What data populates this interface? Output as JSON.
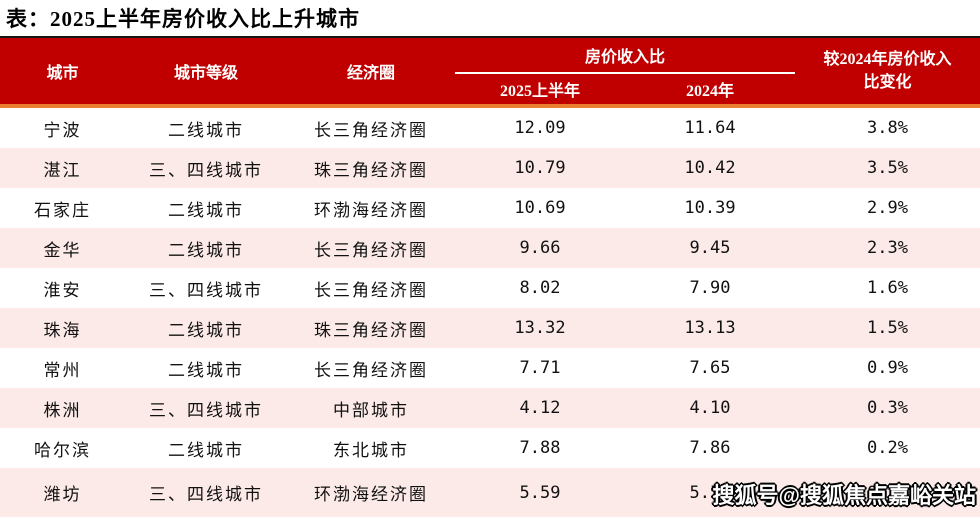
{
  "title": "表：2025上半年房价收入比上升城市",
  "watermark": "搜狐号@搜狐焦点嘉峪关站",
  "colors": {
    "header_bg": "#C00000",
    "header_text": "#FFFFFF",
    "header_top_line": "#151515",
    "header_bottom_line_orange": "#E97F2E",
    "group_underline": "#FFFFFF",
    "row_alt_bg": "#FBEAE8",
    "body_text": "#111111"
  },
  "table": {
    "headers": {
      "city": "城市",
      "tier": "城市等级",
      "circle": "经济圈",
      "ratio_group": "房价收入比",
      "h1_2025": "2025上半年",
      "y2024": "2024年",
      "change_line1": "较2024年房价收入",
      "change_line2": "比变化"
    },
    "rows": [
      {
        "city": "宁波",
        "tier": "二线城市",
        "circle": "长三角经济圈",
        "v2025": "12.09",
        "v2024": "11.64",
        "change": "3.8%"
      },
      {
        "city": "湛江",
        "tier": "三、四线城市",
        "circle": "珠三角经济圈",
        "v2025": "10.79",
        "v2024": "10.42",
        "change": "3.5%"
      },
      {
        "city": "石家庄",
        "tier": "二线城市",
        "circle": "环渤海经济圈",
        "v2025": "10.69",
        "v2024": "10.39",
        "change": "2.9%"
      },
      {
        "city": "金华",
        "tier": "二线城市",
        "circle": "长三角经济圈",
        "v2025": "9.66",
        "v2024": "9.45",
        "change": "2.3%"
      },
      {
        "city": "淮安",
        "tier": "三、四线城市",
        "circle": "长三角经济圈",
        "v2025": "8.02",
        "v2024": "7.90",
        "change": "1.6%"
      },
      {
        "city": "珠海",
        "tier": "二线城市",
        "circle": "珠三角经济圈",
        "v2025": "13.32",
        "v2024": "13.13",
        "change": "1.5%"
      },
      {
        "city": "常州",
        "tier": "二线城市",
        "circle": "长三角经济圈",
        "v2025": "7.71",
        "v2024": "7.65",
        "change": "0.9%"
      },
      {
        "city": "株洲",
        "tier": "三、四线城市",
        "circle": "中部城市",
        "v2025": "4.12",
        "v2024": "4.10",
        "change": "0.3%"
      },
      {
        "city": "哈尔滨",
        "tier": "二线城市",
        "circle": "东北城市",
        "v2025": "7.88",
        "v2024": "7.86",
        "change": "0.2%"
      },
      {
        "city": "潍坊",
        "tier": "三、四线城市",
        "circle": "环渤海经济圈",
        "v2025": "5.59",
        "v2024": "5.58",
        "change": "0.2%"
      }
    ]
  },
  "chart_data": {
    "type": "table",
    "title": "表：2025上半年房价收入比上升城市",
    "columns": [
      "城市",
      "城市等级",
      "经济圈",
      "房价收入比 2025上半年",
      "房价收入比 2024年",
      "较2024年房价收入比变化"
    ],
    "rows": [
      [
        "宁波",
        "二线城市",
        "长三角经济圈",
        12.09,
        11.64,
        "3.8%"
      ],
      [
        "湛江",
        "三、四线城市",
        "珠三角经济圈",
        10.79,
        10.42,
        "3.5%"
      ],
      [
        "石家庄",
        "二线城市",
        "环渤海经济圈",
        10.69,
        10.39,
        "2.9%"
      ],
      [
        "金华",
        "二线城市",
        "长三角经济圈",
        9.66,
        9.45,
        "2.3%"
      ],
      [
        "淮安",
        "三、四线城市",
        "长三角经济圈",
        8.02,
        7.9,
        "1.6%"
      ],
      [
        "珠海",
        "二线城市",
        "珠三角经济圈",
        13.32,
        13.13,
        "1.5%"
      ],
      [
        "常州",
        "二线城市",
        "长三角经济圈",
        7.71,
        7.65,
        "0.9%"
      ],
      [
        "株洲",
        "三、四线城市",
        "中部城市",
        4.12,
        4.1,
        "0.3%"
      ],
      [
        "哈尔滨",
        "二线城市",
        "东北城市",
        7.88,
        7.86,
        "0.2%"
      ],
      [
        "潍坊",
        "三、四线城市",
        "环渤海经济圈",
        5.59,
        5.58,
        "0.2%"
      ]
    ]
  }
}
